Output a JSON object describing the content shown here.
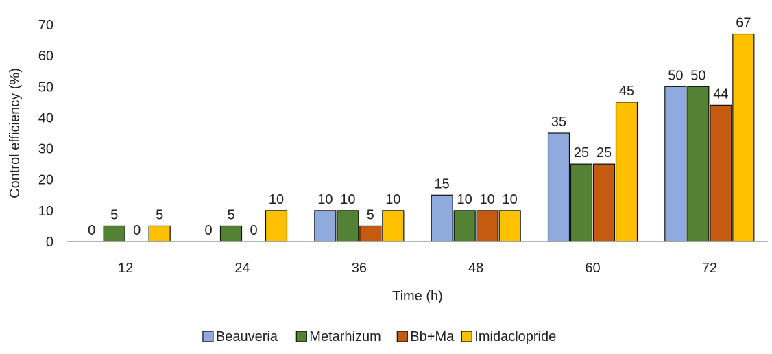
{
  "chart_data": {
    "type": "bar",
    "categories": [
      "12",
      "24",
      "36",
      "48",
      "60",
      "72"
    ],
    "series": [
      {
        "name": "Beauveria",
        "values": [
          0,
          0,
          10,
          15,
          35,
          50
        ],
        "color": "#8FAADC"
      },
      {
        "name": "Metarhizum",
        "values": [
          5,
          5,
          10,
          10,
          25,
          50
        ],
        "color": "#548235"
      },
      {
        "name": "Bb+Ma",
        "values": [
          0,
          0,
          5,
          10,
          25,
          44
        ],
        "color": "#C55A11"
      },
      {
        "name": "Imidaclopride",
        "values": [
          5,
          10,
          10,
          10,
          45,
          67
        ],
        "color": "#FFC000"
      }
    ],
    "title": "",
    "xlabel": "Time (h)",
    "ylabel": "Control efficiency (%)",
    "ylim": [
      0,
      70
    ],
    "yticks": [
      0,
      10,
      20,
      30,
      40,
      50,
      60,
      70
    ],
    "grid": false,
    "legend_position": "bottom"
  }
}
